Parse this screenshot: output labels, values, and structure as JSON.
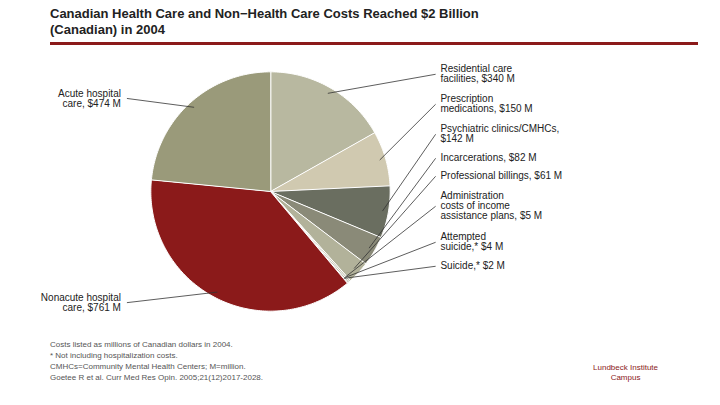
{
  "chart_data": {
    "type": "pie",
    "title": "Canadian Health Care and Non−Health Care Costs Reached $2 Billion\n(Canadian) in 2004",
    "categories": [
      "Residential care\nfacilities, $340 M",
      "Prescription\nmedications, $150 M",
      "Psychiatric clinics/CMHCs,\n$142 M",
      "Incarcerations, $82 M",
      "Professional billings, $61 M",
      "Administration\ncosts of income\nassistance plans, $5 M",
      "Attempted\nsuicide,* $4 M",
      "Suicide,* $2 M",
      "Nonacute hospital\ncare, $761 M",
      "Acute hospital\ncare, $474 M"
    ],
    "values": [
      340,
      150,
      142,
      82,
      61,
      5,
      4,
      2,
      761,
      474
    ],
    "colors": [
      "#b8b8a0",
      "#d0c9b0",
      "#6a6e60",
      "#8a8a78",
      "#b2b29a",
      "#c8c8b2",
      "#a2a28e",
      "#d2d2be",
      "#8b1a1a",
      "#9a9a7a"
    ],
    "annotations": [
      "Costs listed as millions of Canadian dollars in 2004.",
      "* Not including hospitalization costs.",
      "CMHCs=Community Mental Health Centers; M=million.",
      "Goetee R et al. Curr Med Res Opin. 2005;21(12)2017-2028.",
      "Lundbeck Institute\nCampus"
    ]
  }
}
